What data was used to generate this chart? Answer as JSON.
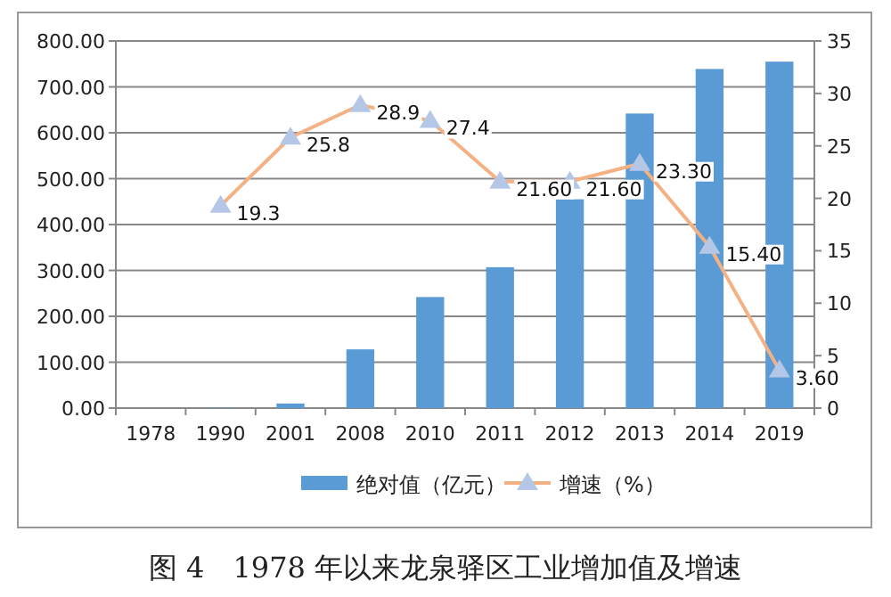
{
  "chart_data": {
    "type": "bar",
    "title": "图 4　1978 年以来龙泉驿区工业增加值及增速",
    "categories": [
      "1978",
      "1990",
      "2001",
      "2008",
      "2010",
      "2011",
      "2012",
      "2013",
      "2014",
      "2019"
    ],
    "series": [
      {
        "name": "绝对值（亿元）",
        "color": "#5b9bd5",
        "values": [
          0,
          1,
          10,
          128,
          242,
          307,
          455,
          642,
          739,
          755
        ]
      },
      {
        "name": "增速（%）",
        "type": "line",
        "axis": "y2",
        "color": "#f4b183",
        "marker": "triangle",
        "values": [
          null,
          19.3,
          25.8,
          28.9,
          27.4,
          21.6,
          21.6,
          23.3,
          15.4,
          3.6
        ],
        "value_labels": [
          null,
          "19.3",
          "25.8",
          "28.9",
          "27.4",
          "21.60",
          "21.60",
          "23.30",
          "15.40",
          "3.60"
        ]
      }
    ],
    "ylim": [
      0,
      800
    ],
    "yticks": [
      {
        "value": 0,
        "label": "0.00"
      },
      {
        "value": 100,
        "label": "100.00"
      },
      {
        "value": 200,
        "label": "200.00"
      },
      {
        "value": 300,
        "label": "300.00"
      },
      {
        "value": 400,
        "label": "400.00"
      },
      {
        "value": 500,
        "label": "500.00"
      },
      {
        "value": 600,
        "label": "600.00"
      },
      {
        "value": 700,
        "label": "700.00"
      },
      {
        "value": 800,
        "label": "800.00"
      }
    ],
    "y2lim": [
      0,
      35
    ],
    "y2ticks": [
      0,
      5,
      10,
      15,
      20,
      25,
      30,
      35
    ],
    "grid": "y",
    "legend": "bottom"
  }
}
